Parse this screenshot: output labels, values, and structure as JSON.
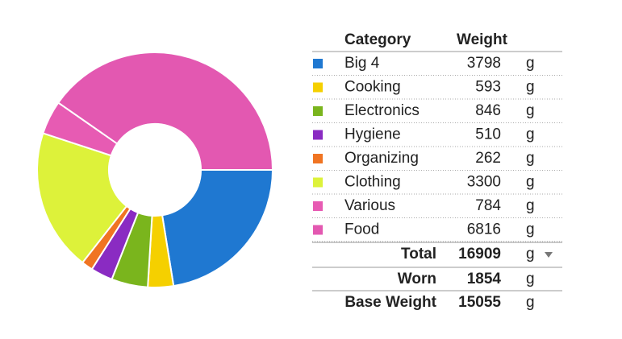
{
  "chart_data": {
    "type": "donut",
    "categories": [
      "Big 4",
      "Cooking",
      "Electronics",
      "Hygiene",
      "Organizing",
      "Clothing",
      "Various",
      "Food"
    ],
    "values": [
      3798,
      593,
      846,
      510,
      262,
      3300,
      784,
      6816
    ],
    "colors": [
      "#1f78d1",
      "#f5d000",
      "#7ab51d",
      "#8a2bc2",
      "#f07422",
      "#ddf23a",
      "#e75bb3",
      "#e358b1"
    ]
  },
  "table": {
    "header": [
      "Category",
      "Weight"
    ],
    "unit": "g",
    "totals": [
      {
        "label": "Total",
        "value": 16909
      },
      {
        "label": "Worn",
        "value": 1854
      },
      {
        "label": "Base Weight",
        "value": 15055
      }
    ]
  }
}
